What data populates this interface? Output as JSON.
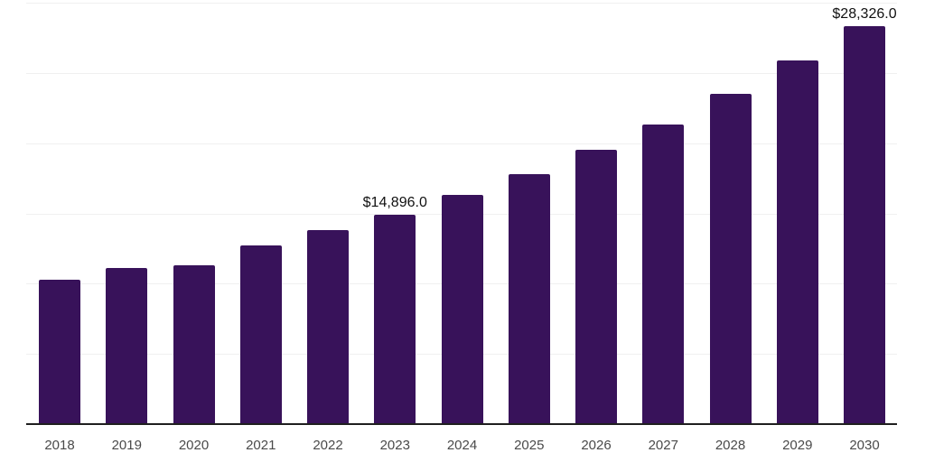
{
  "chart_data": {
    "type": "bar",
    "title": "",
    "xlabel": "",
    "ylabel": "",
    "categories": [
      "2018",
      "2019",
      "2020",
      "2021",
      "2022",
      "2023",
      "2024",
      "2025",
      "2026",
      "2027",
      "2028",
      "2029",
      "2030"
    ],
    "values": [
      10300,
      11100,
      11300,
      12700,
      13800,
      14896,
      16350,
      17800,
      19500,
      21350,
      23500,
      25900,
      28326
    ],
    "data_labels": [
      "",
      "",
      "",
      "",
      "",
      "$14,896.0",
      "",
      "",
      "",
      "",
      "",
      "",
      "$28,326.0"
    ],
    "ylim": [
      0,
      30000
    ],
    "gridline_step": 5000,
    "grid_on": true,
    "legend_position": "none",
    "bar_color": "#38125a",
    "grid_color": "#f0f0f0",
    "axis_color": "#1f1f1f",
    "data_label_color": "#111111",
    "tick_label_color": "#4a4a4a"
  }
}
